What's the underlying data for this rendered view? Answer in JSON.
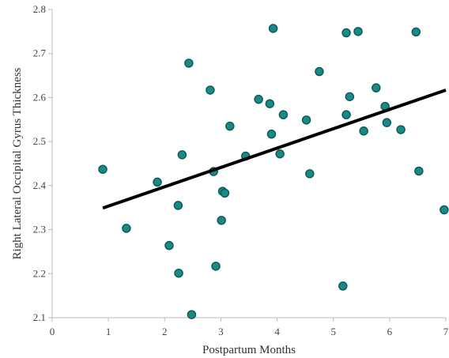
{
  "chart_data": {
    "type": "scatter",
    "title": "",
    "xlabel": "Postpartum Months",
    "ylabel": "Right Lateral Occipital Gyrus Thickness",
    "xlim": [
      0,
      7
    ],
    "ylim": [
      2.1,
      2.8
    ],
    "x_ticks": [
      0,
      1,
      2,
      3,
      4,
      5,
      6,
      7
    ],
    "y_ticks": [
      2.1,
      2.2,
      2.3,
      2.4,
      2.5,
      2.6,
      2.7,
      2.8
    ],
    "x_tick_labels": [
      "0",
      "1",
      "2",
      "3",
      "4",
      "5",
      "6",
      "7"
    ],
    "y_tick_labels": [
      "2.1",
      "2.2",
      "2.3",
      "2.4",
      "2.5",
      "2.6",
      "2.7",
      "2.8"
    ],
    "grid": false,
    "legend": "none",
    "point_color": "#1a8a87",
    "point_edge_color": "#0d5c5a",
    "line_color": "#000000",
    "points": [
      {
        "x": 0.9,
        "y": 2.437
      },
      {
        "x": 1.32,
        "y": 2.303
      },
      {
        "x": 1.87,
        "y": 2.408
      },
      {
        "x": 2.08,
        "y": 2.264
      },
      {
        "x": 2.24,
        "y": 2.355
      },
      {
        "x": 2.25,
        "y": 2.201
      },
      {
        "x": 2.31,
        "y": 2.47
      },
      {
        "x": 2.43,
        "y": 2.678
      },
      {
        "x": 2.48,
        "y": 2.107
      },
      {
        "x": 2.81,
        "y": 2.617
      },
      {
        "x": 2.87,
        "y": 2.432
      },
      {
        "x": 2.91,
        "y": 2.217
      },
      {
        "x": 3.01,
        "y": 2.321
      },
      {
        "x": 3.03,
        "y": 2.387
      },
      {
        "x": 3.07,
        "y": 2.383
      },
      {
        "x": 3.16,
        "y": 2.535
      },
      {
        "x": 3.44,
        "y": 2.467
      },
      {
        "x": 3.67,
        "y": 2.596
      },
      {
        "x": 3.87,
        "y": 2.586
      },
      {
        "x": 3.9,
        "y": 2.517
      },
      {
        "x": 3.93,
        "y": 2.757
      },
      {
        "x": 4.05,
        "y": 2.472
      },
      {
        "x": 4.11,
        "y": 2.561
      },
      {
        "x": 4.52,
        "y": 2.549
      },
      {
        "x": 4.58,
        "y": 2.427
      },
      {
        "x": 4.75,
        "y": 2.659
      },
      {
        "x": 5.17,
        "y": 2.172
      },
      {
        "x": 5.23,
        "y": 2.747
      },
      {
        "x": 5.23,
        "y": 2.561
      },
      {
        "x": 5.29,
        "y": 2.602
      },
      {
        "x": 5.44,
        "y": 2.75
      },
      {
        "x": 5.54,
        "y": 2.524
      },
      {
        "x": 5.76,
        "y": 2.622
      },
      {
        "x": 5.92,
        "y": 2.58
      },
      {
        "x": 5.95,
        "y": 2.543
      },
      {
        "x": 6.2,
        "y": 2.527
      },
      {
        "x": 6.47,
        "y": 2.749
      },
      {
        "x": 6.52,
        "y": 2.433
      },
      {
        "x": 6.97,
        "y": 2.345
      }
    ],
    "trendline": {
      "x": [
        0.9,
        7.0
      ],
      "y": [
        2.349,
        2.617
      ]
    }
  }
}
